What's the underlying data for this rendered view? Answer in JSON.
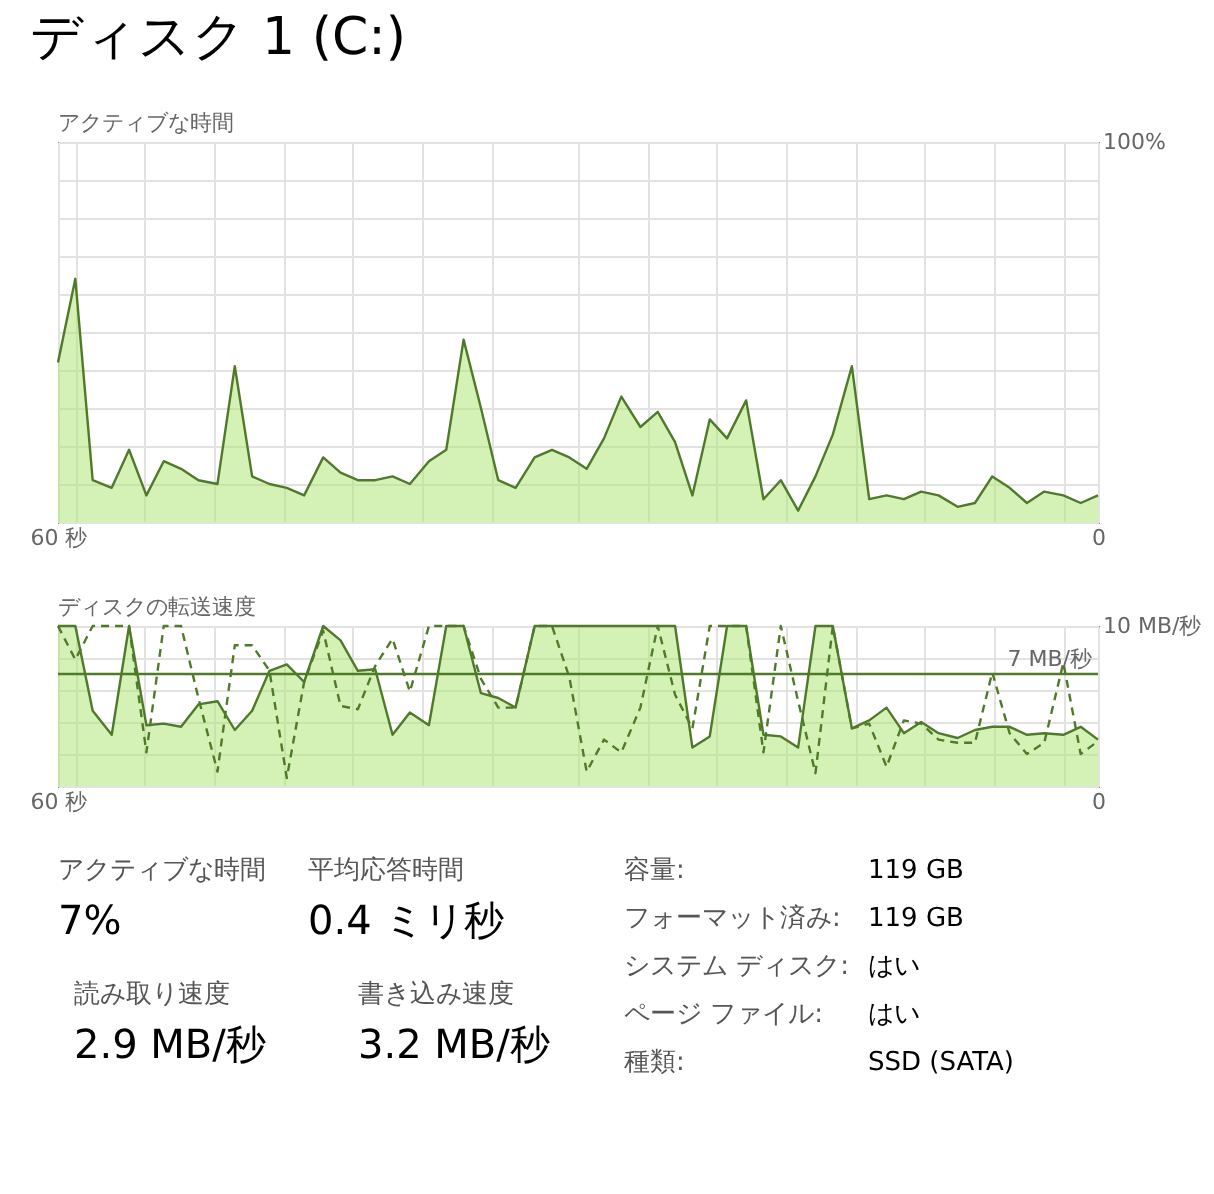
{
  "chart_data": [
    {
      "type": "area",
      "title": "ディスク 1 (C:)",
      "ylabel": "アクティブな時間",
      "x": [
        60,
        59,
        58,
        56.9,
        55.9,
        54.9,
        53.9,
        52.9,
        51.9,
        50.8,
        49.8,
        48.8,
        47.8,
        46.8,
        45.8,
        44.7,
        43.7,
        42.7,
        41.7,
        40.7,
        39.7,
        38.6,
        37.6,
        36.6,
        35.6,
        34.6,
        33.6,
        32.5,
        31.5,
        30.5,
        29.5,
        28.5,
        27.5,
        26.4,
        25.4,
        24.4,
        23.4,
        22.4,
        21.4,
        20.3,
        19.3,
        18.3,
        17.3,
        16.3,
        15.3,
        14.2,
        13.2,
        12.2,
        11.2,
        10.2,
        9.2,
        8.1,
        7.1,
        6.1,
        5.1,
        4.1,
        3.1,
        2,
        1,
        0
      ],
      "series": [
        {
          "type": "area",
          "color": "#4f7a28",
          "values": [
            42,
            64,
            11,
            9,
            19,
            7,
            16,
            14,
            11,
            10,
            41,
            12,
            10,
            9,
            7,
            17,
            13,
            11,
            11,
            12,
            10,
            16,
            19,
            48,
            30,
            11,
            9,
            17,
            19,
            17,
            14,
            22,
            33,
            25,
            29,
            21,
            7,
            27,
            22,
            32,
            6,
            11,
            3,
            12,
            23,
            41,
            6,
            7,
            6,
            8,
            7,
            4,
            5,
            12,
            9,
            5,
            8,
            7,
            5,
            7
          ]
        }
      ],
      "xlim": [
        60,
        0
      ],
      "xticks": [
        {
          "value": 60,
          "label": "60 秒"
        },
        {
          "value": 0,
          "label": "0"
        },
        {
          "value": 59,
          "label": null
        },
        {
          "value": 55,
          "label": null
        },
        {
          "value": 51,
          "label": null
        },
        {
          "value": 47,
          "label": null
        },
        {
          "value": 43,
          "label": null
        },
        {
          "value": 39,
          "label": null
        },
        {
          "value": 35,
          "label": null
        },
        {
          "value": 30,
          "label": null
        },
        {
          "value": 26,
          "label": null
        },
        {
          "value": 22,
          "label": null
        },
        {
          "value": 18,
          "label": null
        },
        {
          "value": 14,
          "label": null
        },
        {
          "value": 10,
          "label": null
        },
        {
          "value": 6,
          "label": null
        },
        {
          "value": 2,
          "label": null
        }
      ],
      "ylim": [
        0,
        100
      ],
      "yticks": [
        {
          "value": 0,
          "label": null
        },
        {
          "value": 10,
          "label": null
        },
        {
          "value": 20,
          "label": null
        },
        {
          "value": 30,
          "label": null
        },
        {
          "value": 40,
          "label": null
        },
        {
          "value": 50,
          "label": null
        },
        {
          "value": 60,
          "label": null
        },
        {
          "value": 70,
          "label": null
        },
        {
          "value": 80,
          "label": null
        },
        {
          "value": 90,
          "label": null
        },
        {
          "value": 100,
          "label": "100%"
        }
      ],
      "grid": true
    },
    {
      "type": "area",
      "ylabel": "ディスクの転送速度",
      "x": [
        60,
        59,
        58,
        56.9,
        55.9,
        54.9,
        53.9,
        52.9,
        51.9,
        50.8,
        49.8,
        48.8,
        47.8,
        46.8,
        45.8,
        44.7,
        43.7,
        42.7,
        41.7,
        40.7,
        39.7,
        38.6,
        37.6,
        36.6,
        35.6,
        34.6,
        33.6,
        32.5,
        31.5,
        30.5,
        29.5,
        28.5,
        27.5,
        26.4,
        25.4,
        24.4,
        23.4,
        22.4,
        21.4,
        20.3,
        19.3,
        18.3,
        17.3,
        16.3,
        15.3,
        14.2,
        13.2,
        12.2,
        11.2,
        10.2,
        9.2,
        8.1,
        7.1,
        6.1,
        5.1,
        4.1,
        3.1,
        2,
        1,
        0
      ],
      "series": [
        {
          "type": "area",
          "color": "#4f7a28",
          "values": [
            10,
            10,
            4.7,
            3.2,
            10,
            3.8,
            3.9,
            3.7,
            5.1,
            5.3,
            3.5,
            4.7,
            7.2,
            7.6,
            6.5,
            10,
            9.1,
            7.2,
            7.3,
            3.2,
            4.6,
            3.8,
            10,
            10,
            5.8,
            5.5,
            4.9,
            10,
            10,
            10,
            10,
            10,
            10,
            10,
            10,
            10,
            2.4,
            3.1,
            10,
            10,
            3.2,
            3.1,
            2.4,
            10,
            10,
            3.6,
            4.1,
            4.9,
            3.3,
            4,
            3.3,
            3,
            3.5,
            3.7,
            3.7,
            3.2,
            3.3,
            3.2,
            3.7,
            2.9
          ]
        },
        {
          "type": "line",
          "line_style": "dashed",
          "color": "#4f7a28",
          "values": [
            10,
            7.9,
            10,
            10,
            10,
            2.1,
            10,
            10,
            5.5,
            0.9,
            8.8,
            8.8,
            7.2,
            0.5,
            6.5,
            9.7,
            5,
            4.8,
            7.5,
            9.2,
            5.9,
            10,
            10,
            10,
            6.7,
            4.9,
            4.9,
            10,
            10,
            6.8,
            0.9,
            2.9,
            2.1,
            4.9,
            10,
            5.7,
            3.6,
            10,
            10,
            10,
            2.1,
            10,
            5.3,
            0.8,
            10,
            3.6,
            3.9,
            1.2,
            4.1,
            3.9,
            2.9,
            2.7,
            2.7,
            7.1,
            3.3,
            2,
            2.7,
            7.7,
            2,
            2.8
          ]
        }
      ],
      "xlim": [
        60,
        0
      ],
      "xticks": [
        {
          "value": 60,
          "label": "60 秒"
        },
        {
          "value": 0,
          "label": "0"
        },
        {
          "value": 59,
          "label": null
        },
        {
          "value": 55,
          "label": null
        },
        {
          "value": 51,
          "label": null
        },
        {
          "value": 47,
          "label": null
        },
        {
          "value": 43,
          "label": null
        },
        {
          "value": 39,
          "label": null
        },
        {
          "value": 35,
          "label": null
        },
        {
          "value": 30,
          "label": null
        },
        {
          "value": 26,
          "label": null
        },
        {
          "value": 22,
          "label": null
        },
        {
          "value": 18,
          "label": null
        },
        {
          "value": 14,
          "label": null
        },
        {
          "value": 10,
          "label": null
        },
        {
          "value": 6,
          "label": null
        },
        {
          "value": 2,
          "label": null
        }
      ],
      "ylim": [
        0,
        10
      ],
      "yticks": [
        {
          "value": 0,
          "label": null
        },
        {
          "value": 2,
          "label": null
        },
        {
          "value": 4,
          "label": null
        },
        {
          "value": 6,
          "label": null
        },
        {
          "value": 8,
          "label": null
        },
        {
          "value": 10,
          "label": "10 MB/秒"
        }
      ],
      "ref_lines": [
        {
          "axis": "y",
          "value": 7,
          "label": "7 MB/秒",
          "color": "#4f7a28"
        }
      ],
      "grid": true
    },
    {
      "type": "other",
      "annotations": [
        "アクティブな時間",
        "7%",
        "平均応答時間",
        "0.4 ミリ秒",
        "読み取り速度",
        "2.9 MB/秒",
        "書き込み速度",
        "3.2 MB/秒",
        "容量:",
        "119 GB",
        "フォーマット済み:",
        "119 GB",
        "システム ディスク:",
        "はい",
        "ページ ファイル:",
        "はい",
        "種類:",
        "SSD (SATA)"
      ]
    }
  ]
}
